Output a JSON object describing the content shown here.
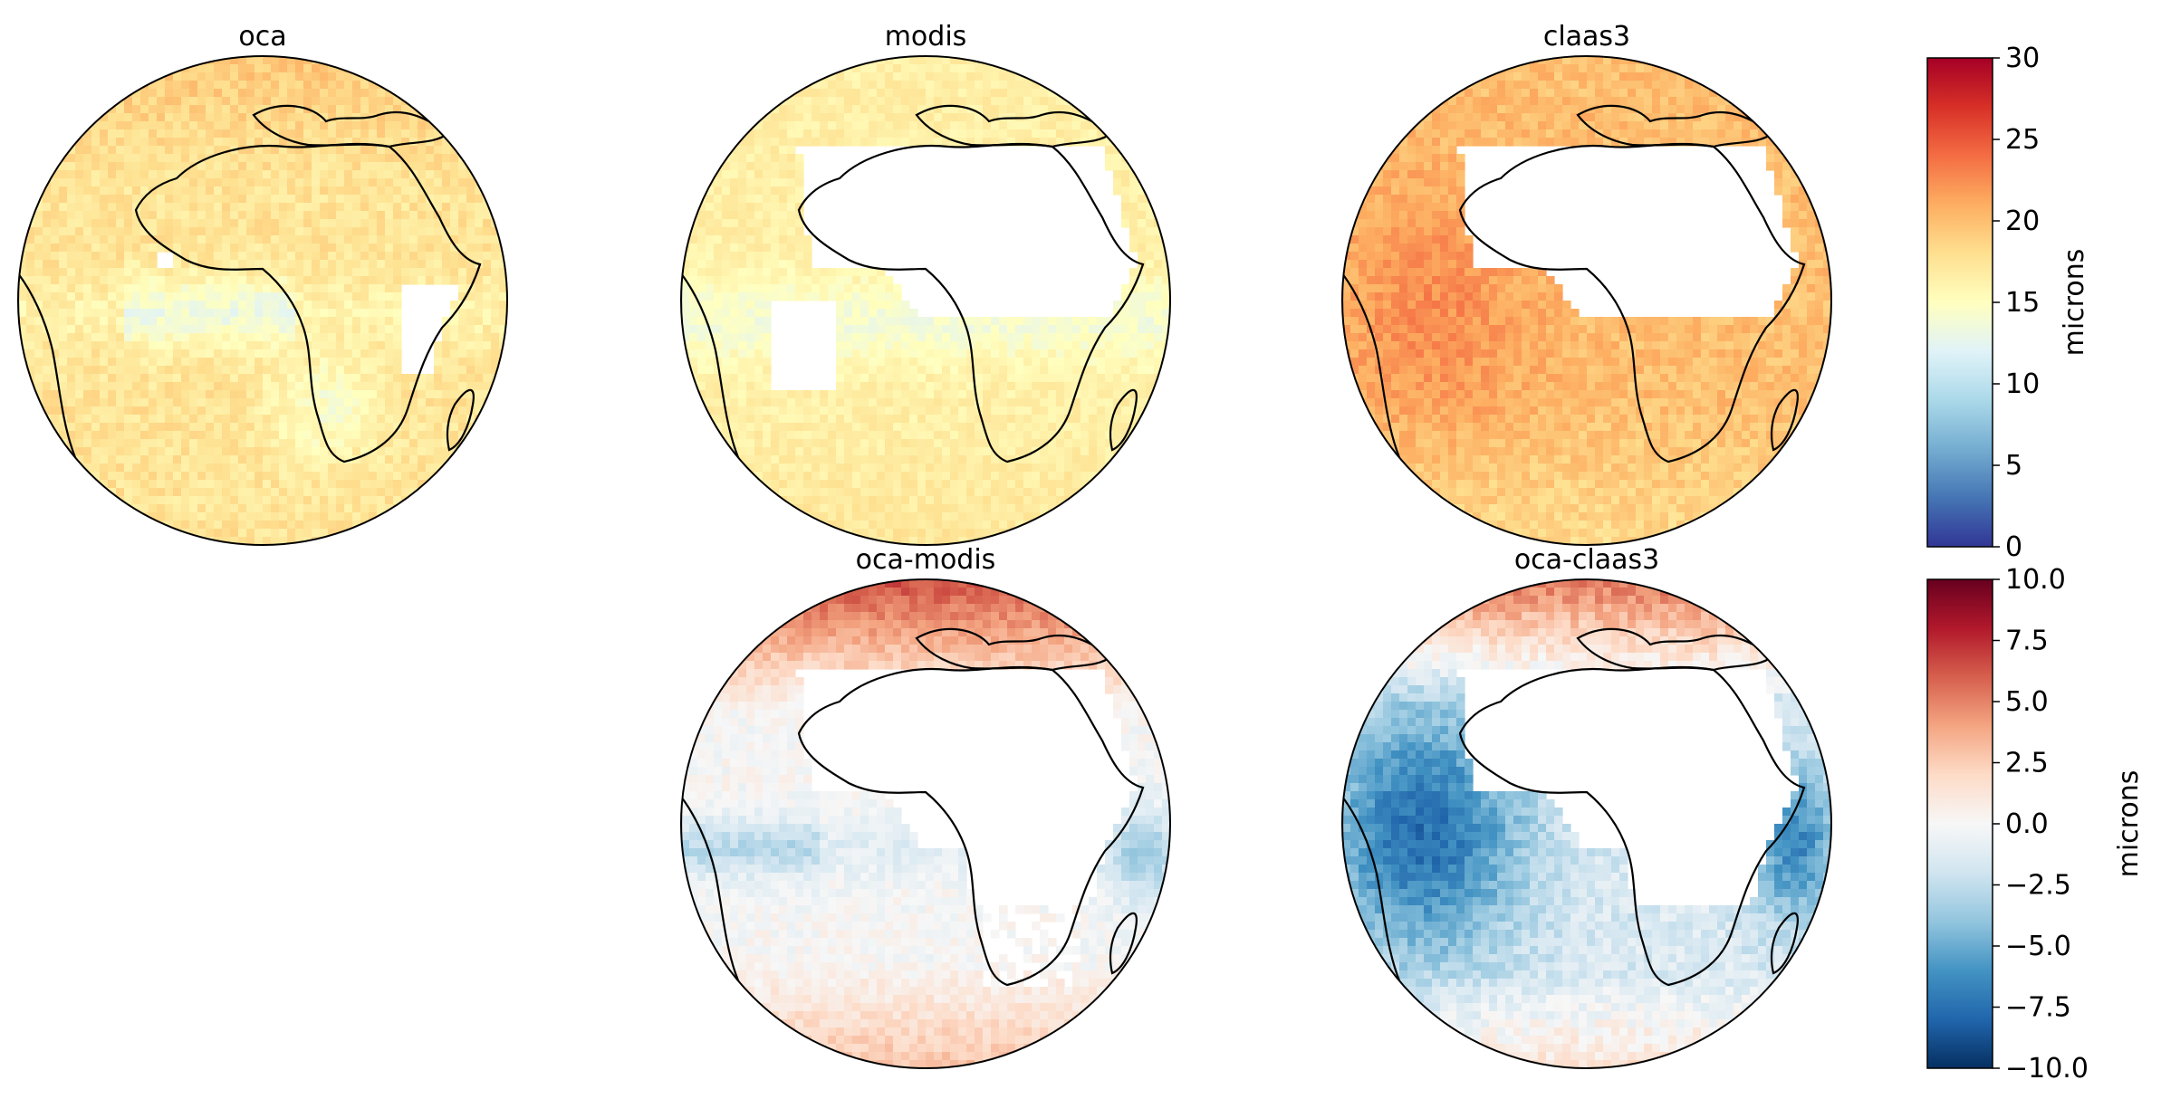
{
  "panels": [
    {
      "id": "oca",
      "title": "oca",
      "colormap": "abs"
    },
    {
      "id": "modis",
      "title": "modis",
      "colormap": "abs"
    },
    {
      "id": "claas3",
      "title": "claas3",
      "colormap": "abs"
    },
    {
      "id": "oca-modis",
      "title": "oca-modis",
      "colormap": "diff"
    },
    {
      "id": "oca-claas3",
      "title": "oca-claas3",
      "colormap": "diff"
    }
  ],
  "colorbars": {
    "absolute": {
      "label": "microns",
      "min": 0,
      "max": 30,
      "ticks": [
        "0",
        "5",
        "10",
        "15",
        "20",
        "25",
        "30"
      ],
      "colors": [
        "#313695",
        "#4575b4",
        "#74add1",
        "#abd9e9",
        "#e0f3f8",
        "#ffffbf",
        "#fee090",
        "#fdae61",
        "#f46d43",
        "#d73027",
        "#a50026"
      ]
    },
    "difference": {
      "label": "microns",
      "min": -10,
      "max": 10,
      "ticks": [
        "−10.0",
        "−7.5",
        "−5.0",
        "−2.5",
        "0.0",
        "2.5",
        "5.0",
        "7.5",
        "10.0"
      ],
      "colors": [
        "#053061",
        "#2166ac",
        "#4393c3",
        "#92c5de",
        "#d1e5f0",
        "#f7f7f7",
        "#fddbc7",
        "#f4a582",
        "#d6604d",
        "#b2182b",
        "#67001f"
      ]
    }
  },
  "colors": {
    "coastline": "#000000",
    "missing": "#ffffff"
  }
}
